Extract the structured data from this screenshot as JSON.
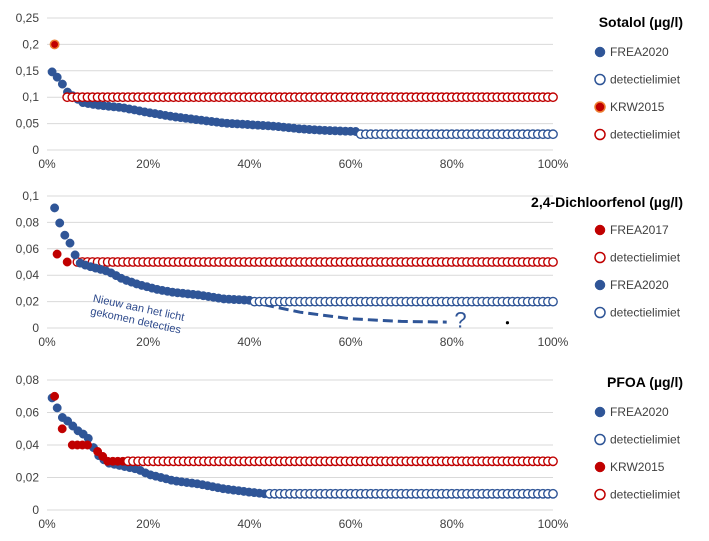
{
  "chart_data": [
    {
      "type": "scatter",
      "title": "Sotalol (µg/l)",
      "ylim": [
        0,
        0.25
      ],
      "yticks": [
        "0",
        "0,05",
        "0,1",
        "0,15",
        "0,2",
        "0,25"
      ],
      "xlim": [
        0,
        100
      ],
      "xticks": [
        "0%",
        "20%",
        "40%",
        "60%",
        "80%",
        "100%"
      ],
      "legend_position": "right",
      "series": [
        {
          "name": "FREA2020",
          "marker": "filled",
          "color": "#2F5597",
          "curve": [
            [
              1,
              0.148
            ],
            [
              2.5,
              0.133
            ],
            [
              4,
              0.11
            ],
            [
              7,
              0.09
            ],
            [
              10,
              0.085
            ],
            [
              15,
              0.08
            ],
            [
              20,
              0.071
            ],
            [
              25,
              0.063
            ],
            [
              30,
              0.057
            ],
            [
              35,
              0.051
            ],
            [
              40,
              0.048
            ],
            [
              45,
              0.045
            ],
            [
              50,
              0.04
            ],
            [
              55,
              0.037
            ],
            [
              61,
              0.035
            ]
          ],
          "x_range": [
            1,
            61
          ],
          "count": 60
        },
        {
          "name": "detectielimiet",
          "marker": "open",
          "color": "#2F5597",
          "x_range": [
            62,
            100
          ],
          "y": 0.03,
          "count": 39
        },
        {
          "name": "KRW2015",
          "marker": "filled",
          "color": "#C00000",
          "edge": "#ED7D31",
          "points": [
            [
              1.5,
              0.2
            ]
          ]
        },
        {
          "name": "detectielimiet",
          "marker": "open",
          "color": "#C00000",
          "x_range": [
            4,
            100
          ],
          "y": 0.1,
          "count": 97
        }
      ]
    },
    {
      "type": "scatter",
      "title": "2,4-Dichloorfenol (µg/l)",
      "ylim": [
        0,
        0.1
      ],
      "yticks": [
        "0",
        "0,02",
        "0,04",
        "0,06",
        "0,08",
        "0,1"
      ],
      "xlim": [
        0,
        100
      ],
      "xticks": [
        "0%",
        "20%",
        "40%",
        "60%",
        "80%",
        "100%"
      ],
      "legend_position": "right",
      "series": [
        {
          "name": "FREA2017",
          "marker": "filled",
          "color": "#C00000",
          "points": [
            [
              2,
              0.056
            ],
            [
              4,
              0.05
            ]
          ]
        },
        {
          "name": "detectielimiet",
          "marker": "open",
          "color": "#C00000",
          "x_range": [
            6,
            100
          ],
          "y": 0.05,
          "count": 95
        },
        {
          "name": "FREA2020",
          "marker": "filled",
          "color": "#2F5597",
          "curve": [
            [
              1.5,
              0.091
            ],
            [
              3,
              0.074
            ],
            [
              4,
              0.067
            ],
            [
              5,
              0.062
            ],
            [
              6,
              0.05
            ],
            [
              8,
              0.047
            ],
            [
              10,
              0.045
            ],
            [
              12,
              0.043
            ],
            [
              15,
              0.037
            ],
            [
              18,
              0.033
            ],
            [
              22,
              0.029
            ],
            [
              25,
              0.027
            ],
            [
              30,
              0.025
            ],
            [
              35,
              0.022
            ],
            [
              40,
              0.021
            ]
          ],
          "x_range": [
            1.5,
            40
          ],
          "count": 39
        },
        {
          "name": "detectielimiet",
          "marker": "open",
          "color": "#2F5597",
          "x_range": [
            41,
            100
          ],
          "y": 0.02,
          "count": 60
        }
      ],
      "annotation": {
        "text_lines": [
          "Nieuw aan het licht",
          "gekomen detecties"
        ],
        "symbol": "?",
        "dashed_curve": [
          [
            40,
            0.02
          ],
          [
            50,
            0.012
          ],
          [
            60,
            0.007
          ],
          [
            70,
            0.005
          ],
          [
            79,
            0.0045
          ]
        ],
        "dot": [
          91,
          0.004
        ]
      }
    },
    {
      "type": "scatter",
      "title": "PFOA (µg/l)",
      "ylim": [
        0,
        0.08
      ],
      "yticks": [
        "0",
        "0,02",
        "0,04",
        "0,06",
        "0,08"
      ],
      "xlim": [
        0,
        100
      ],
      "xticks": [
        "0%",
        "20%",
        "40%",
        "60%",
        "80%",
        "100%"
      ],
      "legend_position": "right",
      "series": [
        {
          "name": "FREA2020",
          "marker": "filled",
          "color": "#2F5597",
          "curve": [
            [
              1,
              0.069
            ],
            [
              3,
              0.057
            ],
            [
              4,
              0.055
            ],
            [
              6,
              0.049
            ],
            [
              8,
              0.045
            ],
            [
              10,
              0.034
            ],
            [
              12,
              0.029
            ],
            [
              15,
              0.027
            ],
            [
              18,
              0.025
            ],
            [
              20,
              0.022
            ],
            [
              25,
              0.018
            ],
            [
              30,
              0.016
            ],
            [
              35,
              0.013
            ],
            [
              40,
              0.011
            ],
            [
              43,
              0.01
            ]
          ],
          "x_range": [
            1,
            43
          ],
          "count": 42
        },
        {
          "name": "detectielimiet",
          "marker": "open",
          "color": "#2F5597",
          "x_range": [
            44,
            100
          ],
          "y": 0.01,
          "count": 57
        },
        {
          "name": "KRW2015",
          "marker": "filled",
          "color": "#C00000",
          "points": [
            [
              1.5,
              0.07
            ],
            [
              3,
              0.05
            ],
            [
              5,
              0.04
            ],
            [
              6,
              0.04
            ],
            [
              7,
              0.04
            ],
            [
              8,
              0.04
            ],
            [
              10,
              0.036
            ],
            [
              11,
              0.033
            ],
            [
              12,
              0.03
            ],
            [
              13,
              0.03
            ],
            [
              14,
              0.03
            ],
            [
              15,
              0.03
            ]
          ]
        },
        {
          "name": "detectielimiet",
          "marker": "open",
          "color": "#C00000",
          "x_range": [
            16,
            100
          ],
          "y": 0.03,
          "count": 85
        }
      ]
    }
  ]
}
